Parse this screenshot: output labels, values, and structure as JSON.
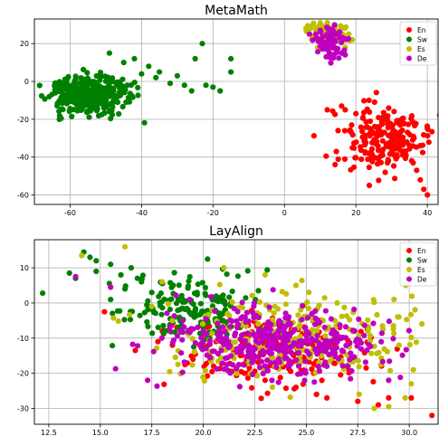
{
  "chart_data": [
    {
      "type": "scatter",
      "title": "MetaMath",
      "xlabel": "",
      "ylabel": "",
      "xlim": [
        -70,
        43
      ],
      "ylim": [
        -65,
        33
      ],
      "xticks": [
        -60,
        -40,
        -20,
        0,
        20,
        40
      ],
      "yticks": [
        -60,
        -40,
        -20,
        0,
        20
      ],
      "grid": true,
      "legend_position": "top-right",
      "series": [
        {
          "name": "En",
          "color": "#ff0000",
          "points": [
            [
              16,
              -13
            ],
            [
              17,
              -15
            ],
            [
              20,
              -17
            ],
            [
              22,
              -19
            ],
            [
              24,
              -21
            ],
            [
              26,
              -24
            ],
            [
              28,
              -27
            ],
            [
              30,
              -31
            ],
            [
              32,
              -35
            ],
            [
              34,
              -39
            ],
            [
              36,
              -43
            ],
            [
              37,
              -47
            ],
            [
              38,
              -52
            ],
            [
              39,
              -57
            ],
            [
              40,
              -60
            ],
            [
              12,
              -15
            ],
            [
              15,
              -26
            ],
            [
              24,
              -25
            ],
            [
              26,
              -29
            ],
            [
              29,
              -34
            ]
          ],
          "clusters": [
            {
              "c": [
                27,
                -30
              ],
              "s": [
                7,
                9
              ],
              "n": 200
            }
          ]
        },
        {
          "name": "Sw",
          "color": "#008000",
          "points": [
            [
              -63,
              -20
            ],
            [
              -45,
              10
            ],
            [
              -42,
              12
            ],
            [
              -38,
              8
            ],
            [
              -35,
              5
            ],
            [
              -30,
              3
            ],
            [
              -25,
              12
            ],
            [
              -23,
              20
            ],
            [
              -20,
              -3
            ],
            [
              -18,
              -5
            ],
            [
              -15,
              12
            ],
            [
              -15,
              5
            ],
            [
              -28,
              -2
            ],
            [
              -26,
              -5
            ],
            [
              -32,
              -1
            ],
            [
              -36,
              2
            ],
            [
              -40,
              4
            ],
            [
              -49,
              15
            ],
            [
              -44,
              -2
            ],
            [
              -22,
              -2
            ]
          ],
          "clusters": [
            {
              "c": [
                -55,
                -7
              ],
              "s": [
                6,
                5
              ],
              "n": 400
            }
          ]
        },
        {
          "name": "Es",
          "color": "#bfbf00",
          "points": [
            [
              6,
              28
            ],
            [
              8,
              30
            ],
            [
              10,
              31
            ],
            [
              12,
              31
            ],
            [
              14,
              30
            ],
            [
              16,
              28
            ],
            [
              18,
              25
            ],
            [
              19,
              22
            ],
            [
              17,
              18
            ],
            [
              8,
              24
            ],
            [
              11,
              29
            ],
            [
              15,
              25
            ]
          ],
          "clusters": [
            {
              "c": [
                12,
                25
              ],
              "s": [
                2.5,
                3
              ],
              "n": 70
            }
          ]
        },
        {
          "name": "De",
          "color": "#bf00bf",
          "points": [
            [
              7,
              25
            ],
            [
              9,
              23
            ],
            [
              10,
              27
            ],
            [
              16,
              15
            ],
            [
              17,
              14
            ],
            [
              14,
              18
            ]
          ],
          "clusters": [
            {
              "c": [
                13,
                21
              ],
              "s": [
                2,
                4
              ],
              "n": 70
            }
          ]
        }
      ]
    },
    {
      "type": "scatter",
      "title": "LayAlign",
      "xlabel": "",
      "ylabel": "",
      "xlim": [
        11.8,
        31.4
      ],
      "ylim": [
        -34.5,
        18
      ],
      "xticks": [
        12.5,
        15.0,
        17.5,
        20.0,
        22.5,
        25.0,
        27.5,
        30.0
      ],
      "yticks": [
        -30,
        -20,
        -10,
        0,
        10
      ],
      "grid": true,
      "legend_position": "top-right",
      "series": [
        {
          "name": "En",
          "color": "#ff0000",
          "points": [
            [
              15.2,
              -2.5
            ],
            [
              16.7,
              -13.5
            ],
            [
              17.8,
              -11
            ],
            [
              18.5,
              -12
            ],
            [
              19.5,
              -16
            ],
            [
              20.5,
              -18
            ],
            [
              22,
              -20
            ],
            [
              23,
              -22
            ],
            [
              24.5,
              -24
            ],
            [
              25.5,
              -26
            ],
            [
              26,
              -27
            ],
            [
              27.5,
              -28
            ],
            [
              28.5,
              -29
            ],
            [
              30.1,
              -27
            ],
            [
              31.1,
              -32
            ],
            [
              29,
              -27
            ]
          ],
          "clusters": [
            {
              "c": [
                23.5,
                -14
              ],
              "s": [
                2.2,
                5
              ],
              "n": 170
            }
          ]
        },
        {
          "name": "Sw",
          "color": "#008000",
          "points": [
            [
              12.2,
              2.8
            ],
            [
              13.5,
              8.5
            ],
            [
              14.2,
              14.5
            ],
            [
              14.5,
              13
            ],
            [
              14.8,
              12
            ],
            [
              15.5,
              11
            ],
            [
              16,
              8
            ],
            [
              16.5,
              10
            ],
            [
              16.2,
              4
            ],
            [
              15.5,
              1
            ],
            [
              17,
              6
            ],
            [
              17.5,
              3
            ],
            [
              14.8,
              9
            ],
            [
              16.8,
              7
            ],
            [
              13.8,
              7
            ]
          ],
          "clusters": [
            {
              "c": [
                19.5,
                -2
              ],
              "s": [
                1.7,
                5
              ],
              "n": 180
            }
          ]
        },
        {
          "name": "Es",
          "color": "#bfbf00",
          "points": [
            [
              14.1,
              13.5
            ],
            [
              16.2,
              16
            ],
            [
              18,
              6
            ],
            [
              21,
              10
            ],
            [
              23,
              8
            ],
            [
              24.5,
              5
            ],
            [
              26.5,
              0
            ],
            [
              28,
              -8
            ],
            [
              29.5,
              -12
            ],
            [
              30.2,
              -19
            ],
            [
              30.1,
              -23
            ],
            [
              29.8,
              -27
            ],
            [
              29,
              -29.5
            ],
            [
              28.3,
              -30
            ],
            [
              18.5,
              -5
            ],
            [
              17.5,
              -1
            ]
          ],
          "clusters": [
            {
              "c": [
                24.5,
                -10
              ],
              "s": [
                3,
                6
              ],
              "n": 260
            }
          ]
        },
        {
          "name": "De",
          "color": "#bf00bf",
          "points": [
            [
              13.8,
              7.5
            ],
            [
              15.5,
              4.5
            ],
            [
              19,
              -5
            ],
            [
              23,
              -8
            ],
            [
              27,
              -18
            ],
            [
              29,
              -22
            ],
            [
              26,
              -18
            ],
            [
              20,
              -8
            ]
          ],
          "clusters": [
            {
              "c": [
                23.5,
                -11
              ],
              "s": [
                2.6,
                5
              ],
              "n": 380
            }
          ]
        }
      ]
    }
  ]
}
